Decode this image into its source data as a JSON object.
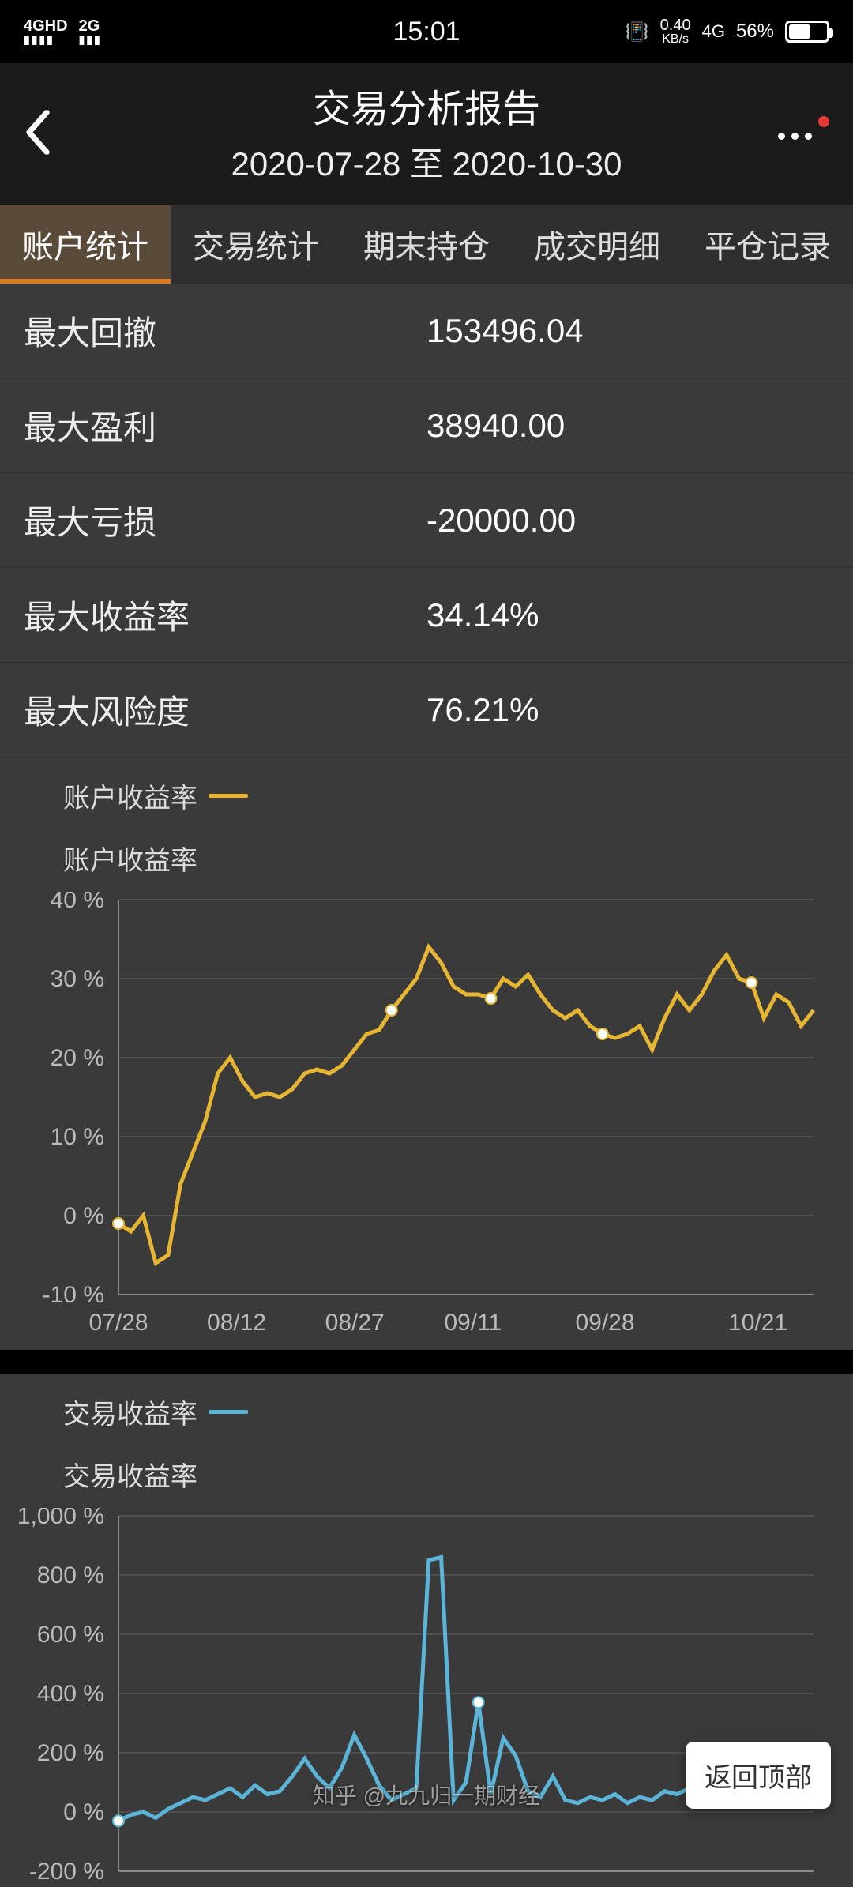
{
  "status_bar": {
    "signal_left": "4GHD",
    "signal_left2": "2G",
    "time": "15:01",
    "speed_top": "0.40",
    "speed_bottom": "KB/s",
    "net_type": "4G",
    "battery_pct": "56%",
    "battery_fill_pct": 56
  },
  "header": {
    "title": "交易分析报告",
    "subtitle": "2020-07-28 至 2020-10-30"
  },
  "tabs": [
    {
      "label": "账户统计",
      "name": "tab-account-stats",
      "active": true
    },
    {
      "label": "交易统计",
      "name": "tab-trade-stats",
      "active": false
    },
    {
      "label": "期末持仓",
      "name": "tab-positions",
      "active": false
    },
    {
      "label": "成交明细",
      "name": "tab-trade-detail",
      "active": false
    },
    {
      "label": "平仓记录",
      "name": "tab-close-records",
      "active": false
    }
  ],
  "stats": [
    {
      "label": "最大回撤",
      "value": "153496.04"
    },
    {
      "label": "最大盈利",
      "value": "38940.00"
    },
    {
      "label": "最大亏损",
      "value": "-20000.00"
    },
    {
      "label": "最大收益率",
      "value": "34.14%"
    },
    {
      "label": "最大风险度",
      "value": "76.21%"
    }
  ],
  "chart1": {
    "type": "line",
    "legend_label": "账户收益率",
    "y_title": "账户收益率",
    "line_color": "#e6b633",
    "marker_fill": "#ffffff",
    "marker_stroke": "#e6b633",
    "background_color": "#3a3a3a",
    "grid_color": "#555555",
    "axis_color": "#888888",
    "label_color": "#bbbbbb",
    "line_width": 5,
    "marker_radius": 7,
    "label_fontsize": 30,
    "y_ticks": [
      -10,
      0,
      10,
      20,
      30,
      40
    ],
    "y_tick_labels": [
      "-10 %",
      "0 %",
      "10 %",
      "20 %",
      "30 %",
      "40 %"
    ],
    "ylim": [
      -10,
      40
    ],
    "x_tick_labels": [
      "07/28",
      "08/12",
      "08/27",
      "09/11",
      "09/28",
      "10/21"
    ],
    "x_tick_positions": [
      0,
      0.17,
      0.34,
      0.51,
      0.7,
      0.92
    ],
    "values": [
      -1,
      -2,
      0,
      -6,
      -5,
      4,
      8,
      12,
      18,
      20,
      17,
      15,
      15.5,
      15,
      16,
      18,
      18.5,
      18,
      19,
      21,
      23,
      23.5,
      26,
      28,
      30,
      34,
      32,
      29,
      28,
      28,
      27.5,
      30,
      29,
      30.5,
      28,
      26,
      25,
      26,
      24,
      23,
      22.5,
      23,
      24,
      21,
      25,
      28,
      26,
      28,
      31,
      33,
      30,
      29.5,
      25,
      28,
      27,
      24,
      26
    ],
    "marker_indices": [
      0,
      22,
      30,
      39,
      51
    ]
  },
  "chart2": {
    "type": "line",
    "legend_label": "交易收益率",
    "y_title": "交易收益率",
    "line_color": "#5bb5d9",
    "marker_fill": "#ffffff",
    "marker_stroke": "#5bb5d9",
    "background_color": "#3a3a3a",
    "grid_color": "#555555",
    "axis_color": "#888888",
    "label_color": "#bbbbbb",
    "line_width": 5,
    "marker_radius": 7,
    "label_fontsize": 30,
    "y_ticks": [
      -200,
      0,
      200,
      400,
      600,
      800,
      1000
    ],
    "y_tick_labels": [
      "-200 %",
      "0 %",
      "200 %",
      "400 %",
      "600 %",
      "800 %",
      "1,000 %"
    ],
    "ylim": [
      -200,
      1000
    ],
    "values": [
      -30,
      -10,
      0,
      -20,
      10,
      30,
      50,
      40,
      60,
      80,
      50,
      90,
      60,
      70,
      120,
      180,
      120,
      80,
      150,
      260,
      180,
      90,
      40,
      60,
      80,
      850,
      860,
      40,
      100,
      370,
      60,
      250,
      190,
      70,
      50,
      120,
      40,
      30,
      50,
      40,
      60,
      30,
      50,
      40,
      70,
      60,
      80,
      190,
      200,
      100,
      120,
      60,
      90,
      110,
      90,
      50,
      100
    ],
    "marker_indices": [
      0,
      29,
      47
    ]
  },
  "back_top_label": "返回顶部",
  "watermark": "知乎 @九九归一期财经"
}
